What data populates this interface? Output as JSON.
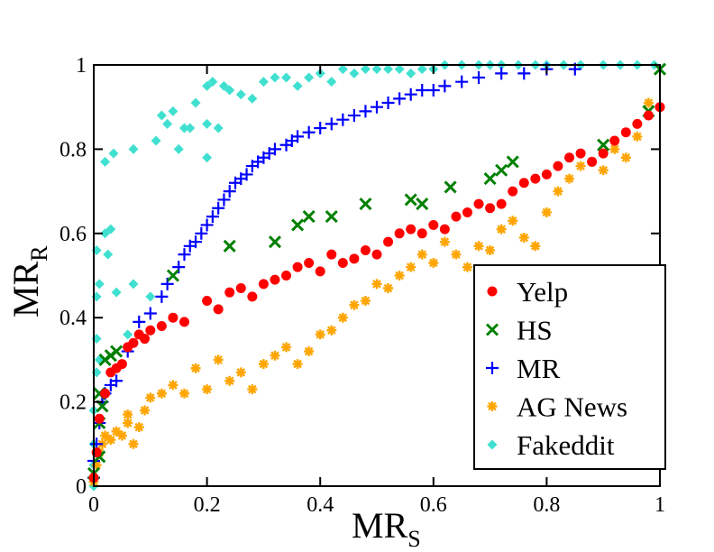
{
  "chart_data": {
    "type": "scatter",
    "title": "",
    "xlabel": "MR",
    "xlabel_sub": "S",
    "ylabel": "MR",
    "ylabel_sub": "R",
    "xlim": [
      0,
      1
    ],
    "ylim": [
      0,
      1
    ],
    "xticks": [
      0,
      0.2,
      0.4,
      0.6,
      0.8,
      1
    ],
    "xtick_labels": [
      "0",
      "0.2",
      "0.4",
      "0.6",
      "0.8",
      "1"
    ],
    "yticks": [
      0,
      0.2,
      0.4,
      0.6,
      0.8,
      1
    ],
    "ytick_labels": [
      "0",
      "0.2",
      "0.4",
      "0.6",
      "0.8",
      "1"
    ],
    "grid": false,
    "legend_position": "bottom-right",
    "series": [
      {
        "name": "Fakeddit",
        "marker": "diamond",
        "color": "#40E0D0",
        "points": [
          [
            0,
            0
          ],
          [
            0,
            0.05
          ],
          [
            0,
            0.1
          ],
          [
            0,
            0.18
          ],
          [
            0.005,
            0.27
          ],
          [
            0.005,
            0.35
          ],
          [
            0.005,
            0.45
          ],
          [
            0.005,
            0.56
          ],
          [
            0.01,
            0.3
          ],
          [
            0.01,
            0.48
          ],
          [
            0.02,
            0.6
          ],
          [
            0.025,
            0.55
          ],
          [
            0.03,
            0.61
          ],
          [
            0.02,
            0.77
          ],
          [
            0.04,
            0.46
          ],
          [
            0.06,
            0.36
          ],
          [
            0.07,
            0.48
          ],
          [
            0.1,
            0.45
          ],
          [
            0.035,
            0.79
          ],
          [
            0.07,
            0.8
          ],
          [
            0.11,
            0.82
          ],
          [
            0.13,
            0.86
          ],
          [
            0.12,
            0.88
          ],
          [
            0.14,
            0.89
          ],
          [
            0.15,
            0.8
          ],
          [
            0.16,
            0.85
          ],
          [
            0.17,
            0.85
          ],
          [
            0.2,
            0.86
          ],
          [
            0.22,
            0.85
          ],
          [
            0.2,
            0.78
          ],
          [
            0.18,
            0.91
          ],
          [
            0.2,
            0.95
          ],
          [
            0.21,
            0.96
          ],
          [
            0.23,
            0.95
          ],
          [
            0.24,
            0.94
          ],
          [
            0.26,
            0.93
          ],
          [
            0.28,
            0.92
          ],
          [
            0.3,
            0.96
          ],
          [
            0.32,
            0.97
          ],
          [
            0.34,
            0.97
          ],
          [
            0.36,
            0.95
          ],
          [
            0.38,
            0.97
          ],
          [
            0.4,
            0.98
          ],
          [
            0.42,
            0.96
          ],
          [
            0.44,
            0.99
          ],
          [
            0.46,
            0.98
          ],
          [
            0.48,
            0.99
          ],
          [
            0.5,
            0.99
          ],
          [
            0.52,
            0.99
          ],
          [
            0.54,
            0.99
          ],
          [
            0.56,
            0.98
          ],
          [
            0.58,
            0.99
          ],
          [
            0.6,
            0.99
          ],
          [
            0.62,
            1
          ],
          [
            0.65,
            1
          ],
          [
            0.68,
            1
          ],
          [
            0.7,
            1
          ],
          [
            0.72,
            1
          ],
          [
            0.75,
            1
          ],
          [
            0.78,
            1
          ],
          [
            0.8,
            1
          ],
          [
            0.83,
            1
          ],
          [
            0.86,
            1
          ],
          [
            0.9,
            1
          ],
          [
            0.93,
            1
          ],
          [
            0.96,
            1
          ],
          [
            0.99,
            1
          ]
        ]
      },
      {
        "name": "AG News",
        "marker": "star",
        "color": "#FFA500",
        "points": [
          [
            0,
            0.01
          ],
          [
            0.005,
            0.05
          ],
          [
            0.01,
            0.08
          ],
          [
            0.015,
            0.1
          ],
          [
            0.02,
            0.12
          ],
          [
            0.03,
            0.11
          ],
          [
            0.04,
            0.13
          ],
          [
            0.05,
            0.12
          ],
          [
            0.06,
            0.15
          ],
          [
            0.07,
            0.1
          ],
          [
            0.08,
            0.14
          ],
          [
            0.06,
            0.17
          ],
          [
            0.09,
            0.18
          ],
          [
            0.1,
            0.21
          ],
          [
            0.12,
            0.22
          ],
          [
            0.14,
            0.24
          ],
          [
            0.16,
            0.22
          ],
          [
            0.18,
            0.28
          ],
          [
            0.2,
            0.23
          ],
          [
            0.22,
            0.3
          ],
          [
            0.24,
            0.25
          ],
          [
            0.26,
            0.27
          ],
          [
            0.28,
            0.23
          ],
          [
            0.3,
            0.29
          ],
          [
            0.32,
            0.31
          ],
          [
            0.34,
            0.33
          ],
          [
            0.36,
            0.29
          ],
          [
            0.38,
            0.32
          ],
          [
            0.4,
            0.36
          ],
          [
            0.42,
            0.37
          ],
          [
            0.44,
            0.4
          ],
          [
            0.46,
            0.43
          ],
          [
            0.48,
            0.44
          ],
          [
            0.5,
            0.48
          ],
          [
            0.52,
            0.47
          ],
          [
            0.54,
            0.5
          ],
          [
            0.56,
            0.52
          ],
          [
            0.58,
            0.55
          ],
          [
            0.6,
            0.53
          ],
          [
            0.62,
            0.58
          ],
          [
            0.64,
            0.55
          ],
          [
            0.66,
            0.52
          ],
          [
            0.68,
            0.57
          ],
          [
            0.7,
            0.56
          ],
          [
            0.72,
            0.61
          ],
          [
            0.74,
            0.63
          ],
          [
            0.76,
            0.59
          ],
          [
            0.78,
            0.57
          ],
          [
            0.8,
            0.65
          ],
          [
            0.82,
            0.7
          ],
          [
            0.84,
            0.73
          ],
          [
            0.86,
            0.76
          ],
          [
            0.88,
            0.77
          ],
          [
            0.9,
            0.75
          ],
          [
            0.92,
            0.8
          ],
          [
            0.94,
            0.78
          ],
          [
            0.96,
            0.83
          ],
          [
            0.98,
            0.91
          ]
        ]
      },
      {
        "name": "MR",
        "marker": "plus",
        "color": "#0000FF",
        "points": [
          [
            0,
            0.02
          ],
          [
            0,
            0.06
          ],
          [
            0.005,
            0.1
          ],
          [
            0.01,
            0.15
          ],
          [
            0.015,
            0.2
          ],
          [
            0.02,
            0.22
          ],
          [
            0.03,
            0.24
          ],
          [
            0.04,
            0.25
          ],
          [
            0.06,
            0.32
          ],
          [
            0.08,
            0.39
          ],
          [
            0.1,
            0.41
          ],
          [
            0.12,
            0.45
          ],
          [
            0.13,
            0.48
          ],
          [
            0.15,
            0.52
          ],
          [
            0.16,
            0.55
          ],
          [
            0.17,
            0.57
          ],
          [
            0.18,
            0.58
          ],
          [
            0.19,
            0.6
          ],
          [
            0.2,
            0.62
          ],
          [
            0.21,
            0.64
          ],
          [
            0.22,
            0.66
          ],
          [
            0.23,
            0.68
          ],
          [
            0.24,
            0.7
          ],
          [
            0.25,
            0.72
          ],
          [
            0.26,
            0.73
          ],
          [
            0.27,
            0.74
          ],
          [
            0.28,
            0.76
          ],
          [
            0.29,
            0.77
          ],
          [
            0.3,
            0.78
          ],
          [
            0.31,
            0.79
          ],
          [
            0.32,
            0.8
          ],
          [
            0.34,
            0.81
          ],
          [
            0.35,
            0.82
          ],
          [
            0.36,
            0.83
          ],
          [
            0.38,
            0.84
          ],
          [
            0.4,
            0.85
          ],
          [
            0.42,
            0.86
          ],
          [
            0.44,
            0.87
          ],
          [
            0.46,
            0.88
          ],
          [
            0.48,
            0.89
          ],
          [
            0.5,
            0.9
          ],
          [
            0.52,
            0.91
          ],
          [
            0.54,
            0.92
          ],
          [
            0.56,
            0.93
          ],
          [
            0.58,
            0.94
          ],
          [
            0.6,
            0.94
          ],
          [
            0.62,
            0.95
          ],
          [
            0.65,
            0.96
          ],
          [
            0.68,
            0.97
          ],
          [
            0.72,
            0.98
          ],
          [
            0.76,
            0.98
          ],
          [
            0.8,
            0.99
          ],
          [
            0.85,
            0.99
          ]
        ]
      },
      {
        "name": "HS",
        "marker": "x",
        "color": "#008000",
        "points": [
          [
            0,
            0.03
          ],
          [
            0.01,
            0.07
          ],
          [
            0.01,
            0.15
          ],
          [
            0.015,
            0.19
          ],
          [
            0.01,
            0.22
          ],
          [
            0.02,
            0.3
          ],
          [
            0.03,
            0.31
          ],
          [
            0.04,
            0.32
          ],
          [
            0.14,
            0.5
          ],
          [
            0.24,
            0.57
          ],
          [
            0.32,
            0.58
          ],
          [
            0.36,
            0.62
          ],
          [
            0.38,
            0.64
          ],
          [
            0.42,
            0.64
          ],
          [
            0.48,
            0.67
          ],
          [
            0.56,
            0.68
          ],
          [
            0.58,
            0.67
          ],
          [
            0.63,
            0.71
          ],
          [
            0.7,
            0.73
          ],
          [
            0.72,
            0.75
          ],
          [
            0.74,
            0.77
          ],
          [
            0.9,
            0.81
          ],
          [
            0.98,
            0.89
          ],
          [
            1,
            0.99
          ]
        ]
      },
      {
        "name": "Yelp",
        "marker": "circle",
        "color": "#FF0000",
        "points": [
          [
            0,
            0.02
          ],
          [
            0.005,
            0.08
          ],
          [
            0.01,
            0.16
          ],
          [
            0.02,
            0.22
          ],
          [
            0.03,
            0.27
          ],
          [
            0.04,
            0.28
          ],
          [
            0.05,
            0.29
          ],
          [
            0.06,
            0.33
          ],
          [
            0.07,
            0.34
          ],
          [
            0.08,
            0.36
          ],
          [
            0.09,
            0.35
          ],
          [
            0.1,
            0.37
          ],
          [
            0.12,
            0.38
          ],
          [
            0.14,
            0.4
          ],
          [
            0.16,
            0.39
          ],
          [
            0.2,
            0.44
          ],
          [
            0.22,
            0.42
          ],
          [
            0.24,
            0.46
          ],
          [
            0.26,
            0.47
          ],
          [
            0.28,
            0.45
          ],
          [
            0.3,
            0.48
          ],
          [
            0.32,
            0.49
          ],
          [
            0.34,
            0.5
          ],
          [
            0.36,
            0.52
          ],
          [
            0.38,
            0.53
          ],
          [
            0.4,
            0.51
          ],
          [
            0.42,
            0.55
          ],
          [
            0.44,
            0.53
          ],
          [
            0.46,
            0.54
          ],
          [
            0.48,
            0.56
          ],
          [
            0.5,
            0.55
          ],
          [
            0.52,
            0.58
          ],
          [
            0.54,
            0.6
          ],
          [
            0.56,
            0.61
          ],
          [
            0.58,
            0.6
          ],
          [
            0.6,
            0.62
          ],
          [
            0.62,
            0.61
          ],
          [
            0.64,
            0.64
          ],
          [
            0.66,
            0.65
          ],
          [
            0.68,
            0.67
          ],
          [
            0.7,
            0.66
          ],
          [
            0.72,
            0.67
          ],
          [
            0.74,
            0.7
          ],
          [
            0.76,
            0.72
          ],
          [
            0.78,
            0.73
          ],
          [
            0.8,
            0.74
          ],
          [
            0.82,
            0.76
          ],
          [
            0.84,
            0.78
          ],
          [
            0.86,
            0.79
          ],
          [
            0.88,
            0.77
          ],
          [
            0.9,
            0.79
          ],
          [
            0.92,
            0.82
          ],
          [
            0.94,
            0.84
          ],
          [
            0.96,
            0.86
          ],
          [
            0.98,
            0.88
          ],
          [
            1,
            0.9
          ]
        ]
      }
    ],
    "legend_order": [
      "Yelp",
      "HS",
      "MR",
      "AG News",
      "Fakeddit"
    ]
  }
}
